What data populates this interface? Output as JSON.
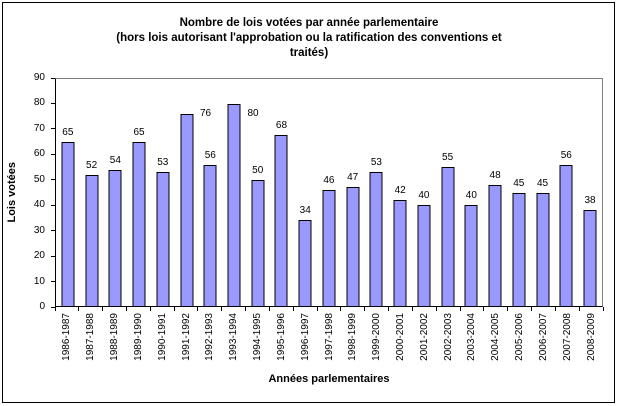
{
  "chart_data": {
    "type": "bar",
    "title_lines": [
      "Nombre de lois votées par année parlementaire",
      "(hors lois autorisant l'approbation ou la ratification des conventions et",
      "traités)"
    ],
    "categories": [
      "1986-1987",
      "1987-1988",
      "1988-1989",
      "1989-1990",
      "1990-1991",
      "1991-1992",
      "1992-1993",
      "1993-1994",
      "1994-1995",
      "1995-1996",
      "1996-1997",
      "1997-1998",
      "1998-1999",
      "1999-2000",
      "2000-2001",
      "2001-2002",
      "2002-2003",
      "2003-2004",
      "2004-2005",
      "2005-2006",
      "2006-2007",
      "2007-2008",
      "2008-2009"
    ],
    "values": [
      65,
      52,
      54,
      65,
      53,
      76,
      56,
      80,
      50,
      68,
      34,
      46,
      47,
      53,
      42,
      40,
      55,
      40,
      48,
      45,
      45,
      56,
      38
    ],
    "xlabel": "Années parlementaires",
    "ylabel": "Lois votées",
    "ylim": [
      0,
      90
    ],
    "yticks": [
      0,
      10,
      20,
      30,
      40,
      50,
      60,
      70,
      80,
      90
    ],
    "grid": "none",
    "legend": "none",
    "data_labels": "outside-end",
    "label_offsets": {
      "5": {
        "dx": 19,
        "dy": 9
      },
      "7": {
        "dx": 19,
        "dy": 19
      }
    },
    "bar_color": "#9999FF",
    "bar_border_color": "#000000",
    "plot_border_color": "#808080",
    "axis_color": "#000000",
    "background_color": "#FFFFFF"
  }
}
